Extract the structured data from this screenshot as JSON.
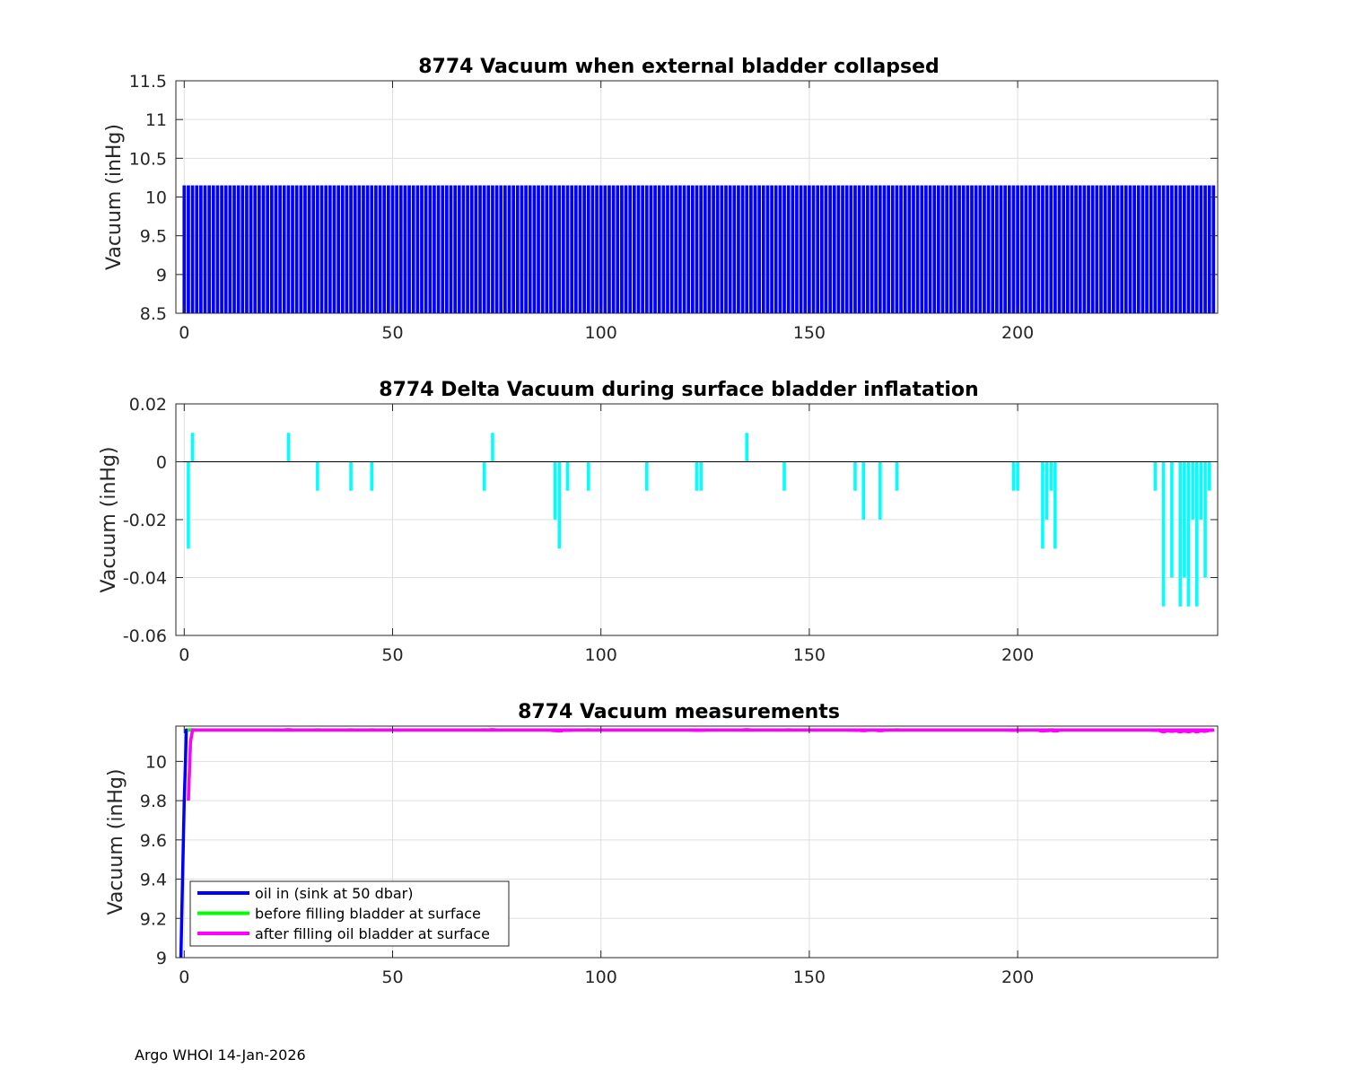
{
  "footer": "Argo WHOI 14-Jan-2026",
  "chart_data": [
    {
      "type": "bar",
      "title": "8774 Vacuum when external bladder collapsed",
      "ylabel": "Vacuum (inHg)",
      "xlim": [
        -2,
        248
      ],
      "ylim": [
        8.5,
        11.5
      ],
      "xticks": [
        0,
        50,
        100,
        150,
        200
      ],
      "yticks": [
        8.5,
        9,
        9.5,
        10,
        10.5,
        11,
        11.5
      ],
      "ytick_labels": [
        "8.5",
        "9",
        "9.5",
        "10",
        "10.5",
        "11",
        "11.5"
      ],
      "color": "#0000ff",
      "x_range": [
        0,
        247
      ],
      "value_all": 10.15
    },
    {
      "type": "bar",
      "title": "8774 Delta Vacuum during surface bladder inflatation",
      "ylabel": "Vacuum (inHg)",
      "xlim": [
        -2,
        248
      ],
      "ylim": [
        -0.06,
        0.02
      ],
      "xticks": [
        0,
        50,
        100,
        150,
        200
      ],
      "yticks": [
        -0.06,
        -0.04,
        -0.02,
        0,
        0.02
      ],
      "ytick_labels": [
        "-0.06",
        "-0.04",
        "-0.02",
        "0",
        "0.02"
      ],
      "color": "#00ffff",
      "x": [
        1,
        2,
        25,
        32,
        40,
        45,
        72,
        74,
        89,
        90,
        92,
        97,
        111,
        123,
        124,
        135,
        144,
        161,
        163,
        167,
        171,
        199,
        200,
        206,
        207,
        208,
        209,
        233,
        235,
        237,
        239,
        240,
        241,
        242,
        243,
        244,
        245,
        246
      ],
      "values": [
        -0.03,
        0.01,
        0.01,
        -0.01,
        -0.01,
        -0.01,
        -0.01,
        0.01,
        -0.02,
        -0.03,
        -0.01,
        -0.01,
        -0.01,
        -0.01,
        -0.01,
        0.01,
        -0.01,
        -0.01,
        -0.02,
        -0.02,
        -0.01,
        -0.01,
        -0.01,
        -0.03,
        -0.02,
        -0.01,
        -0.03,
        -0.01,
        -0.05,
        -0.04,
        -0.05,
        -0.04,
        -0.05,
        -0.02,
        -0.05,
        -0.02,
        -0.04,
        -0.01
      ]
    },
    {
      "type": "line",
      "title": "8774 Vacuum measurements",
      "ylabel": "Vacuum (inHg)",
      "xlim": [
        -2,
        248
      ],
      "ylim": [
        9,
        10.18
      ],
      "xticks": [
        0,
        50,
        100,
        150,
        200
      ],
      "yticks": [
        9,
        9.2,
        9.4,
        9.6,
        9.8,
        10
      ],
      "ytick_labels": [
        "9",
        "9.2",
        "9.4",
        "9.6",
        "9.8",
        "10"
      ],
      "baseline": 10.16,
      "legend_position": "bottom-left",
      "series": [
        {
          "name": "oil in (sink at 50 dbar)",
          "color": "#0000ff",
          "x": [
            -0.8,
            -0.6,
            -0.3,
            0,
            0.3,
            0.5,
            1,
            2,
            247
          ],
          "y": [
            9.0,
            9.2,
            9.5,
            9.8,
            10.0,
            10.16,
            10.16,
            10.16,
            10.16
          ]
        },
        {
          "name": "before filling bladder at surface",
          "color": "#00ff00",
          "x": [
            1,
            1.5,
            2,
            247
          ],
          "y": [
            9.8,
            10.1,
            10.16,
            10.16
          ],
          "bumps_x": [
            2,
            25,
            32,
            40,
            45,
            72,
            74,
            89,
            90,
            97,
            135,
            145,
            171,
            199,
            200,
            206,
            207,
            208
          ],
          "bumps_dy": [
            0.01,
            0.01,
            0.01,
            0.01,
            0.01,
            0.01,
            0.01,
            -0.01,
            -0.01,
            0.01,
            0.01,
            0.01,
            0.01,
            -0.01,
            -0.01,
            -0.01,
            -0.01,
            0.01
          ]
        },
        {
          "name": "after filling oil bladder at surface",
          "color": "#ff00ff",
          "x": [
            1,
            1.5,
            2,
            247
          ],
          "y": [
            9.8,
            10.1,
            10.16,
            10.16
          ],
          "bumps_x": [
            25,
            74,
            89,
            90,
            92,
            123,
            124,
            135,
            161,
            163,
            167,
            199,
            200,
            206,
            207,
            209,
            233,
            235,
            237,
            239,
            240,
            241,
            242,
            243,
            244,
            245,
            246
          ],
          "bumps_dy": [
            0.01,
            0.01,
            -0.02,
            -0.03,
            -0.01,
            -0.01,
            -0.01,
            0.01,
            -0.01,
            -0.02,
            -0.02,
            -0.01,
            -0.01,
            -0.03,
            -0.02,
            -0.03,
            -0.01,
            -0.05,
            -0.04,
            -0.05,
            -0.04,
            -0.05,
            -0.02,
            -0.05,
            -0.02,
            -0.04,
            -0.01
          ]
        }
      ]
    }
  ]
}
